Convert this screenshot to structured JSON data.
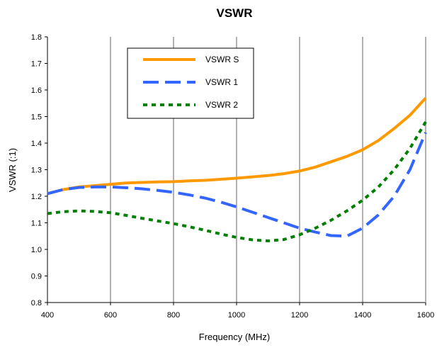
{
  "chart_data": {
    "type": "line",
    "title": "VSWR",
    "xlabel": "Frequency (MHz)",
    "ylabel": "VSWR (:1)",
    "xlim": [
      400,
      1600
    ],
    "ylim": [
      0.8,
      1.8
    ],
    "x_ticks": [
      400,
      600,
      800,
      1000,
      1200,
      1400,
      1600
    ],
    "y_ticks": [
      0.8,
      0.9,
      1.0,
      1.1,
      1.2,
      1.3,
      1.4,
      1.5,
      1.6,
      1.7,
      1.8
    ],
    "x_tick_labels": [
      "400",
      "600",
      "800",
      "1000",
      "1200",
      "1400",
      "1600"
    ],
    "y_tick_labels": [
      "0.8",
      "0.9",
      "1.0",
      "1.1",
      "1.2",
      "1.3",
      "1.4",
      "1.5",
      "1.6",
      "1.7",
      "1.8"
    ],
    "vertical_grid": true,
    "horizontal_grid": false,
    "legend_position": "top-left",
    "series": [
      {
        "name": "VSWR S",
        "color": "#FF9900",
        "style": "solid",
        "x": [
          400,
          450,
          500,
          550,
          600,
          650,
          700,
          750,
          800,
          850,
          900,
          950,
          1000,
          1050,
          1100,
          1150,
          1200,
          1250,
          1300,
          1350,
          1400,
          1450,
          1500,
          1550,
          1600
        ],
        "y": [
          1.21,
          1.225,
          1.235,
          1.24,
          1.245,
          1.25,
          1.252,
          1.254,
          1.255,
          1.258,
          1.26,
          1.264,
          1.268,
          1.273,
          1.278,
          1.285,
          1.295,
          1.31,
          1.33,
          1.35,
          1.375,
          1.41,
          1.455,
          1.505,
          1.57
        ]
      },
      {
        "name": "VSWR 1",
        "color": "#3366FF",
        "style": "dash",
        "x": [
          400,
          450,
          500,
          550,
          600,
          650,
          700,
          750,
          800,
          850,
          900,
          950,
          1000,
          1050,
          1100,
          1150,
          1200,
          1250,
          1300,
          1350,
          1400,
          1450,
          1500,
          1550,
          1600
        ],
        "y": [
          1.21,
          1.225,
          1.233,
          1.235,
          1.235,
          1.232,
          1.228,
          1.222,
          1.215,
          1.205,
          1.193,
          1.178,
          1.16,
          1.14,
          1.12,
          1.1,
          1.08,
          1.065,
          1.052,
          1.05,
          1.08,
          1.13,
          1.2,
          1.3,
          1.44
        ]
      },
      {
        "name": "VSWR 2",
        "color": "#008000",
        "style": "dot",
        "x": [
          400,
          450,
          500,
          550,
          600,
          650,
          700,
          750,
          800,
          850,
          900,
          950,
          1000,
          1050,
          1100,
          1150,
          1200,
          1250,
          1300,
          1350,
          1400,
          1450,
          1500,
          1550,
          1600
        ],
        "y": [
          1.135,
          1.142,
          1.145,
          1.143,
          1.138,
          1.128,
          1.117,
          1.107,
          1.097,
          1.085,
          1.072,
          1.058,
          1.045,
          1.036,
          1.032,
          1.037,
          1.055,
          1.08,
          1.11,
          1.145,
          1.185,
          1.235,
          1.3,
          1.38,
          1.48
        ]
      }
    ]
  }
}
